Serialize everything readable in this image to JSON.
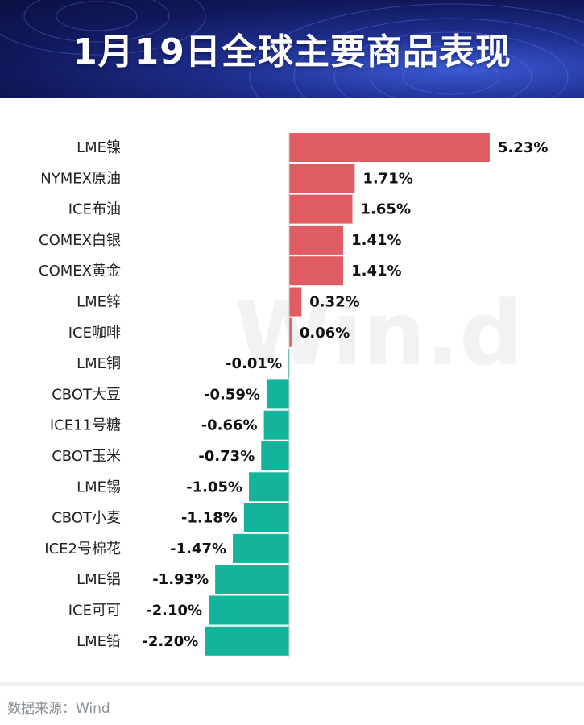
{
  "title": "1月19日全球主要商品表现",
  "source": "数据来源：Wind",
  "watermark": "Win.d",
  "colors": {
    "positive": "#e05c63",
    "negative": "#13b39c",
    "axis": "#cccccc"
  },
  "chart_data": {
    "type": "bar",
    "orientation": "horizontal",
    "categories": [
      "LME镍",
      "NYMEX原油",
      "ICE布油",
      "COMEX白银",
      "COMEX黄金",
      "LME锌",
      "ICE咖啡",
      "LME铜",
      "CBOT大豆",
      "ICE11号糖",
      "CBOT玉米",
      "LME锡",
      "CBOT小麦",
      "ICE2号棉花",
      "LME铝",
      "ICE可可",
      "LME铅"
    ],
    "values": [
      5.23,
      1.71,
      1.65,
      1.41,
      1.41,
      0.32,
      0.06,
      -0.01,
      -0.59,
      -0.66,
      -0.73,
      -1.05,
      -1.18,
      -1.47,
      -1.93,
      -2.1,
      -2.2
    ],
    "labels": [
      "5.23%",
      "1.71%",
      "1.65%",
      "1.41%",
      "1.41%",
      "0.32%",
      "0.06%",
      "-0.01%",
      "-0.59%",
      "-0.66%",
      "-0.73%",
      "-1.05%",
      "-1.18%",
      "-1.47%",
      "-1.93%",
      "-2.10%",
      "-2.20%"
    ],
    "unit": "%"
  }
}
